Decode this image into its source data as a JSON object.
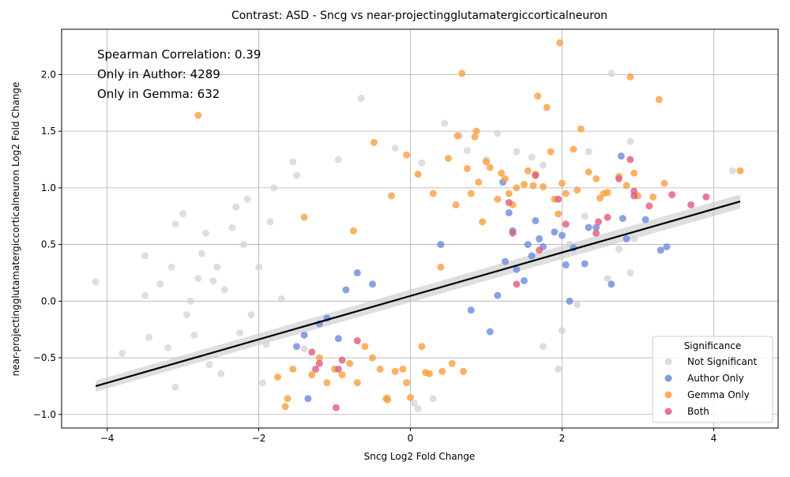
{
  "chart_data": {
    "type": "scatter",
    "title": "Contrast: ASD - Sncg vs near-projectingglutamatergiccorticalneuron",
    "xlabel": "Sncg Log2 Fold Change",
    "ylabel": "near-projectingglutamatergiccorticalneuron Log2 Fold Change",
    "xlim": [
      -4.6,
      4.85
    ],
    "ylim": [
      -1.12,
      2.4
    ],
    "xticks": [
      -4,
      -2,
      0,
      2,
      4
    ],
    "yticks": [
      -1.0,
      -0.5,
      0.0,
      0.5,
      1.0,
      1.5,
      2.0
    ],
    "grid": true,
    "annotations": [
      "Spearman Correlation: 0.39",
      "Only in Author: 4289",
      "Only in Gemma: 632"
    ],
    "legend": {
      "title": "Significance",
      "placement": "lower-right",
      "entries": [
        {
          "label": "Not Significant",
          "color": "#d3d3d3"
        },
        {
          "label": "Author Only",
          "color": "#6a8be0"
        },
        {
          "label": "Gemma Only",
          "color": "#f9a03f"
        },
        {
          "label": "Both",
          "color": "#e05c7a"
        }
      ]
    },
    "regression_line": {
      "x": [
        -4.15,
        4.35
      ],
      "y": [
        -0.75,
        0.88
      ],
      "color": "#000000"
    },
    "series": [
      {
        "name": "Not Significant",
        "color": "#d3d3d3",
        "points": [
          [
            -4.15,
            0.17
          ],
          [
            -3.8,
            -0.46
          ],
          [
            -3.5,
            0.4
          ],
          [
            -3.5,
            0.05
          ],
          [
            -3.45,
            -0.32
          ],
          [
            -3.3,
            0.15
          ],
          [
            -3.2,
            -0.41
          ],
          [
            -3.15,
            0.3
          ],
          [
            -3.1,
            0.68
          ],
          [
            -3.1,
            -0.76
          ],
          [
            -3.0,
            0.77
          ],
          [
            -2.95,
            -0.12
          ],
          [
            -2.9,
            0.0
          ],
          [
            -2.85,
            -0.3
          ],
          [
            -2.8,
            0.2
          ],
          [
            -2.75,
            0.42
          ],
          [
            -2.7,
            0.6
          ],
          [
            -2.65,
            -0.56
          ],
          [
            -2.6,
            0.18
          ],
          [
            -2.55,
            0.3
          ],
          [
            -2.5,
            -0.64
          ],
          [
            -2.45,
            0.1
          ],
          [
            -2.35,
            0.65
          ],
          [
            -2.3,
            0.83
          ],
          [
            -2.25,
            -0.28
          ],
          [
            -2.2,
            0.5
          ],
          [
            -2.15,
            0.9
          ],
          [
            -2.1,
            -0.12
          ],
          [
            -2.0,
            0.3
          ],
          [
            -1.95,
            -0.72
          ],
          [
            -1.9,
            -0.38
          ],
          [
            -1.85,
            0.7
          ],
          [
            -1.8,
            1.0
          ],
          [
            -1.7,
            0.02
          ],
          [
            -1.55,
            1.23
          ],
          [
            -1.5,
            1.11
          ],
          [
            -1.4,
            -0.42
          ],
          [
            -0.95,
            1.25
          ],
          [
            -0.65,
            1.79
          ],
          [
            -0.2,
            1.35
          ],
          [
            0.15,
            1.22
          ],
          [
            0.45,
            1.57
          ],
          [
            0.65,
            1.46
          ],
          [
            0.75,
            1.33
          ],
          [
            1.0,
            1.25
          ],
          [
            1.15,
            1.48
          ],
          [
            1.4,
            1.32
          ],
          [
            1.6,
            1.27
          ],
          [
            1.75,
            1.2
          ],
          [
            2.35,
            1.32
          ],
          [
            2.65,
            2.01
          ],
          [
            2.9,
            1.41
          ],
          [
            2.9,
            0.25
          ],
          [
            2.95,
            0.55
          ],
          [
            2.6,
            0.2
          ],
          [
            2.75,
            0.46
          ],
          [
            2.2,
            -0.03
          ],
          [
            2.0,
            -0.26
          ],
          [
            1.95,
            -0.6
          ],
          [
            1.75,
            -0.4
          ],
          [
            0.1,
            -0.95
          ],
          [
            0.3,
            -0.86
          ],
          [
            0.05,
            -0.9
          ],
          [
            -0.3,
            -0.85
          ],
          [
            4.25,
            1.15
          ],
          [
            2.1,
            0.5
          ],
          [
            2.3,
            0.75
          ]
        ]
      },
      {
        "name": "Author Only",
        "color": "#6a8be0",
        "points": [
          [
            -1.35,
            -0.86
          ],
          [
            -1.5,
            -0.4
          ],
          [
            -1.4,
            -0.3
          ],
          [
            -1.2,
            -0.2
          ],
          [
            -1.1,
            -0.15
          ],
          [
            -0.95,
            -0.33
          ],
          [
            -0.85,
            0.1
          ],
          [
            -0.7,
            0.25
          ],
          [
            -0.5,
            0.15
          ],
          [
            0.4,
            0.5
          ],
          [
            0.8,
            -0.08
          ],
          [
            1.05,
            -0.27
          ],
          [
            1.15,
            0.05
          ],
          [
            1.25,
            0.35
          ],
          [
            1.3,
            0.78
          ],
          [
            1.35,
            0.62
          ],
          [
            1.4,
            0.28
          ],
          [
            1.5,
            0.18
          ],
          [
            1.55,
            0.5
          ],
          [
            1.6,
            0.4
          ],
          [
            1.65,
            0.71
          ],
          [
            1.7,
            0.55
          ],
          [
            1.75,
            0.48
          ],
          [
            1.9,
            0.61
          ],
          [
            2.0,
            0.58
          ],
          [
            2.05,
            0.32
          ],
          [
            2.1,
            0.0
          ],
          [
            2.15,
            0.47
          ],
          [
            2.3,
            0.33
          ],
          [
            2.35,
            0.65
          ],
          [
            2.45,
            0.65
          ],
          [
            2.65,
            0.15
          ],
          [
            2.78,
            1.28
          ],
          [
            2.8,
            0.73
          ],
          [
            2.85,
            0.55
          ],
          [
            3.1,
            0.72
          ],
          [
            3.3,
            0.45
          ],
          [
            3.38,
            0.48
          ],
          [
            1.22,
            1.05
          ]
        ]
      },
      {
        "name": "Gemma Only",
        "color": "#f9a03f",
        "points": [
          [
            -2.8,
            1.64
          ],
          [
            -1.75,
            -0.67
          ],
          [
            -1.65,
            -0.93
          ],
          [
            -1.62,
            -0.86
          ],
          [
            -1.55,
            -0.6
          ],
          [
            -1.4,
            0.74
          ],
          [
            -1.3,
            -0.65
          ],
          [
            -1.2,
            -0.5
          ],
          [
            -1.1,
            -0.72
          ],
          [
            -1.0,
            -0.6
          ],
          [
            -0.9,
            -0.65
          ],
          [
            -0.8,
            -0.55
          ],
          [
            -0.75,
            0.62
          ],
          [
            -0.7,
            -0.72
          ],
          [
            -0.6,
            -0.4
          ],
          [
            -0.5,
            -0.5
          ],
          [
            -0.48,
            1.4
          ],
          [
            -0.4,
            -0.6
          ],
          [
            -0.32,
            -0.86
          ],
          [
            -0.3,
            -0.87
          ],
          [
            -0.25,
            0.93
          ],
          [
            -0.2,
            -0.62
          ],
          [
            -0.1,
            -0.6
          ],
          [
            -0.05,
            1.29
          ],
          [
            -0.05,
            -0.72
          ],
          [
            0.0,
            -0.85
          ],
          [
            0.1,
            1.12
          ],
          [
            0.15,
            -0.4
          ],
          [
            0.2,
            -0.63
          ],
          [
            0.25,
            -0.64
          ],
          [
            0.3,
            0.95
          ],
          [
            0.4,
            0.3
          ],
          [
            0.42,
            -0.62
          ],
          [
            0.5,
            1.26
          ],
          [
            0.55,
            -0.55
          ],
          [
            0.6,
            0.85
          ],
          [
            0.62,
            1.46
          ],
          [
            0.68,
            2.01
          ],
          [
            0.7,
            -0.62
          ],
          [
            0.75,
            1.17
          ],
          [
            0.8,
            0.95
          ],
          [
            0.85,
            1.45
          ],
          [
            0.87,
            1.5
          ],
          [
            0.9,
            1.05
          ],
          [
            0.95,
            0.7
          ],
          [
            1.0,
            1.23
          ],
          [
            1.05,
            1.18
          ],
          [
            1.15,
            0.9
          ],
          [
            1.2,
            1.13
          ],
          [
            1.25,
            1.08
          ],
          [
            1.3,
            0.95
          ],
          [
            1.35,
            0.85
          ],
          [
            1.4,
            1.0
          ],
          [
            1.5,
            1.03
          ],
          [
            1.55,
            1.15
          ],
          [
            1.62,
            1.02
          ],
          [
            1.65,
            1.12
          ],
          [
            1.68,
            1.81
          ],
          [
            1.75,
            1.01
          ],
          [
            1.8,
            1.71
          ],
          [
            1.85,
            1.32
          ],
          [
            1.9,
            0.9
          ],
          [
            1.95,
            0.77
          ],
          [
            1.97,
            2.28
          ],
          [
            2.0,
            1.04
          ],
          [
            2.05,
            0.95
          ],
          [
            2.15,
            1.34
          ],
          [
            2.2,
            0.98
          ],
          [
            2.25,
            1.52
          ],
          [
            2.35,
            1.14
          ],
          [
            2.45,
            1.08
          ],
          [
            2.5,
            0.91
          ],
          [
            2.55,
            0.95
          ],
          [
            2.6,
            0.96
          ],
          [
            2.75,
            1.1
          ],
          [
            2.85,
            1.02
          ],
          [
            2.9,
            1.98
          ],
          [
            2.95,
            1.13
          ],
          [
            3.0,
            0.93
          ],
          [
            3.2,
            0.92
          ],
          [
            3.28,
            1.78
          ],
          [
            3.35,
            1.04
          ],
          [
            4.35,
            1.15
          ]
        ]
      },
      {
        "name": "Both",
        "color": "#e05c7a",
        "points": [
          [
            -1.3,
            -0.45
          ],
          [
            -1.25,
            -0.6
          ],
          [
            -1.2,
            -0.55
          ],
          [
            -0.98,
            -0.94
          ],
          [
            -0.95,
            -0.6
          ],
          [
            -0.9,
            -0.52
          ],
          [
            -0.7,
            -0.35
          ],
          [
            1.3,
            0.87
          ],
          [
            1.35,
            0.6
          ],
          [
            1.65,
            1.11
          ],
          [
            1.7,
            0.45
          ],
          [
            1.95,
            0.9
          ],
          [
            2.05,
            0.68
          ],
          [
            2.45,
            0.6
          ],
          [
            2.48,
            0.7
          ],
          [
            2.6,
            0.74
          ],
          [
            2.75,
            1.08
          ],
          [
            2.9,
            1.25
          ],
          [
            2.95,
            0.93
          ],
          [
            2.95,
            0.97
          ],
          [
            3.15,
            0.84
          ],
          [
            3.45,
            0.94
          ],
          [
            3.7,
            0.85
          ],
          [
            3.9,
            0.92
          ],
          [
            1.4,
            0.15
          ]
        ]
      }
    ]
  }
}
